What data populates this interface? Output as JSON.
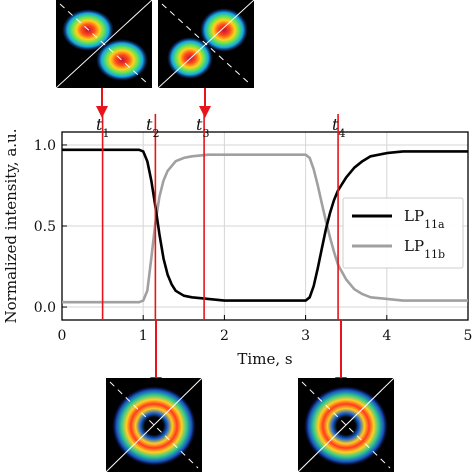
{
  "chart_data": {
    "type": "line",
    "title": "",
    "xlabel": "Time, s",
    "ylabel": "Normalized intensity, a.u.",
    "xlim": [
      0,
      5
    ],
    "ylim": [
      -0.08,
      1.08
    ],
    "xticks": [
      0,
      1,
      2,
      3,
      4,
      5
    ],
    "yticks": [
      0.0,
      0.5,
      1.0
    ],
    "xtick_labels": [
      "0",
      "1",
      "2",
      "3",
      "4",
      "5"
    ],
    "ytick_labels": [
      "0.0",
      "0.5",
      "1.0"
    ],
    "grid": true,
    "legend_placement": "right",
    "series": [
      {
        "name": "LP",
        "subscript": "11a",
        "color": "#000000",
        "x": [
          0,
          0.5,
          0.95,
          1.0,
          1.05,
          1.1,
          1.15,
          1.2,
          1.25,
          1.3,
          1.35,
          1.4,
          1.5,
          1.6,
          1.8,
          2.0,
          2.5,
          3.0,
          3.05,
          3.1,
          3.15,
          3.2,
          3.25,
          3.3,
          3.35,
          3.4,
          3.5,
          3.6,
          3.7,
          3.8,
          4.0,
          4.2,
          4.5,
          5.0
        ],
        "y": [
          0.97,
          0.97,
          0.97,
          0.96,
          0.9,
          0.78,
          0.62,
          0.45,
          0.3,
          0.2,
          0.14,
          0.1,
          0.07,
          0.06,
          0.05,
          0.04,
          0.04,
          0.04,
          0.06,
          0.13,
          0.24,
          0.36,
          0.48,
          0.58,
          0.66,
          0.72,
          0.8,
          0.86,
          0.9,
          0.93,
          0.95,
          0.96,
          0.96,
          0.96
        ]
      },
      {
        "name": "LP",
        "subscript": "11b",
        "color": "#a0a0a0",
        "x": [
          0,
          0.5,
          0.95,
          1.0,
          1.05,
          1.1,
          1.15,
          1.2,
          1.25,
          1.3,
          1.4,
          1.5,
          1.6,
          1.8,
          2.0,
          2.5,
          3.0,
          3.05,
          3.1,
          3.15,
          3.2,
          3.25,
          3.3,
          3.35,
          3.4,
          3.5,
          3.6,
          3.7,
          3.8,
          4.0,
          4.2,
          4.5,
          5.0
        ],
        "y": [
          0.03,
          0.03,
          0.03,
          0.04,
          0.1,
          0.3,
          0.52,
          0.68,
          0.78,
          0.84,
          0.9,
          0.92,
          0.93,
          0.94,
          0.94,
          0.94,
          0.94,
          0.92,
          0.85,
          0.75,
          0.64,
          0.53,
          0.43,
          0.34,
          0.26,
          0.17,
          0.11,
          0.08,
          0.06,
          0.05,
          0.04,
          0.04,
          0.04
        ]
      }
    ],
    "markers": [
      {
        "label": "t",
        "subscript": "1",
        "x": 0.5
      },
      {
        "label": "t",
        "subscript": "2",
        "x": 1.15
      },
      {
        "label": "t",
        "subscript": "3",
        "x": 1.75
      },
      {
        "label": "t",
        "subscript": "4",
        "x": 3.4
      }
    ],
    "marker_color": "#e8141b"
  }
}
